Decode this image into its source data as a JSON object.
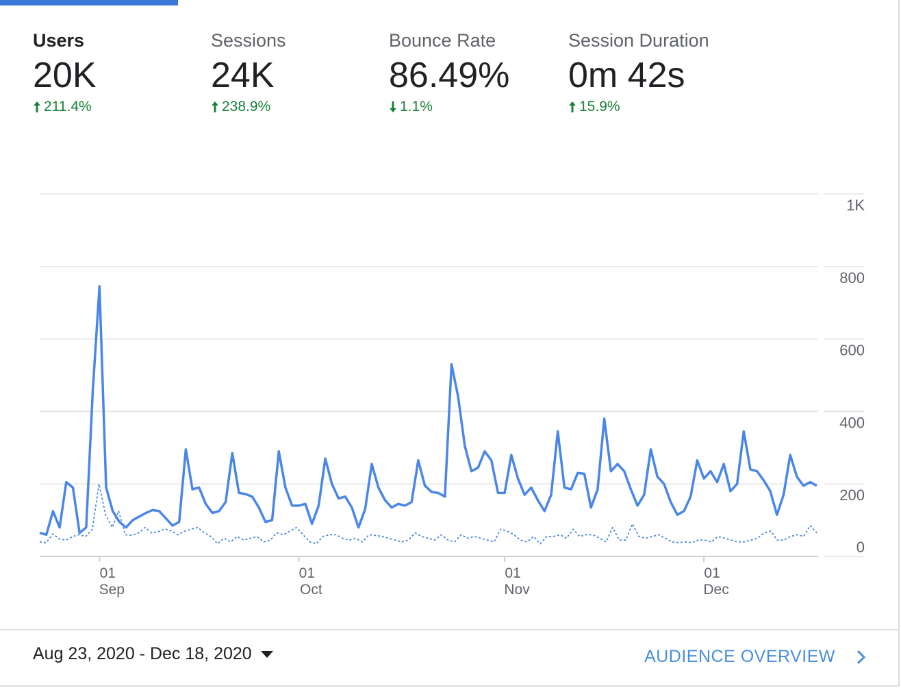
{
  "metrics": [
    {
      "label": "Users",
      "value": "20K",
      "change": "211.4%",
      "direction": "up",
      "active": true
    },
    {
      "label": "Sessions",
      "value": "24K",
      "change": "238.9%",
      "direction": "up",
      "active": false
    },
    {
      "label": "Bounce Rate",
      "value": "86.49%",
      "change": "1.1%",
      "direction": "down",
      "active": false
    },
    {
      "label": "Session Duration",
      "value": "0m 42s",
      "change": "15.9%",
      "direction": "up",
      "active": false
    }
  ],
  "footer": {
    "date_range": "Aug 23, 2020 - Dec 18, 2020",
    "link_label": "AUDIENCE OVERVIEW"
  },
  "colors": {
    "accent": "#3c78d8",
    "line": "#4a86e8",
    "positive": "#188038"
  },
  "chart_data": {
    "type": "line",
    "x_start": "2020-08-23",
    "x_end": "2020-12-18",
    "ylim": [
      0,
      1000
    ],
    "yticks": [
      "0",
      "200",
      "400",
      "600",
      "800",
      "1K"
    ],
    "xticks": [
      {
        "day": "01",
        "month": "Sep",
        "date": "2020-09-01"
      },
      {
        "day": "01",
        "month": "Oct",
        "date": "2020-10-01"
      },
      {
        "day": "01",
        "month": "Nov",
        "date": "2020-11-01"
      },
      {
        "day": "01",
        "month": "Dec",
        "date": "2020-12-01"
      }
    ],
    "series": [
      {
        "style": "solid",
        "values": [
          65,
          60,
          125,
          80,
          205,
          190,
          65,
          80,
          460,
          745,
          190,
          125,
          95,
          80,
          100,
          110,
          120,
          128,
          125,
          105,
          85,
          95,
          295,
          185,
          190,
          145,
          120,
          125,
          150,
          285,
          175,
          172,
          165,
          135,
          95,
          100,
          290,
          190,
          140,
          140,
          145,
          90,
          140,
          270,
          200,
          160,
          165,
          135,
          80,
          130,
          255,
          190,
          155,
          135,
          145,
          140,
          150,
          265,
          195,
          178,
          175,
          165,
          530,
          440,
          305,
          235,
          245,
          290,
          265,
          175,
          175,
          280,
          215,
          170,
          190,
          155,
          125,
          170,
          345,
          190,
          185,
          230,
          228,
          135,
          185,
          380,
          235,
          255,
          235,
          185,
          140,
          170,
          295,
          220,
          200,
          150,
          115,
          125,
          165,
          265,
          215,
          235,
          205,
          255,
          180,
          200,
          345,
          240,
          235,
          210,
          180,
          115,
          170,
          280,
          220,
          195,
          205,
          195
        ],
        "color": "#4a86e8"
      },
      {
        "style": "dotted",
        "values": [
          40,
          38,
          62,
          48,
          45,
          55,
          60,
          55,
          75,
          200,
          115,
          80,
          125,
          60,
          58,
          65,
          80,
          65,
          68,
          76,
          70,
          60,
          70,
          75,
          80,
          65,
          55,
          35,
          50,
          40,
          55,
          45,
          50,
          55,
          40,
          45,
          65,
          60,
          70,
          80,
          60,
          40,
          35,
          55,
          60,
          60,
          50,
          45,
          50,
          40,
          60,
          58,
          55,
          50,
          45,
          40,
          45,
          65,
          55,
          50,
          45,
          60,
          45,
          40,
          60,
          50,
          55,
          50,
          45,
          40,
          75,
          70,
          60,
          45,
          40,
          55,
          35,
          55,
          55,
          60,
          50,
          75,
          55,
          60,
          60,
          50,
          40,
          80,
          45,
          45,
          90,
          55,
          50,
          55,
          60,
          50,
          40,
          38,
          40,
          38,
          45,
          45,
          40,
          55,
          50,
          45,
          40,
          40,
          45,
          50,
          65,
          70,
          45,
          45,
          55,
          60,
          55,
          85,
          65
        ]
      }
    ]
  }
}
